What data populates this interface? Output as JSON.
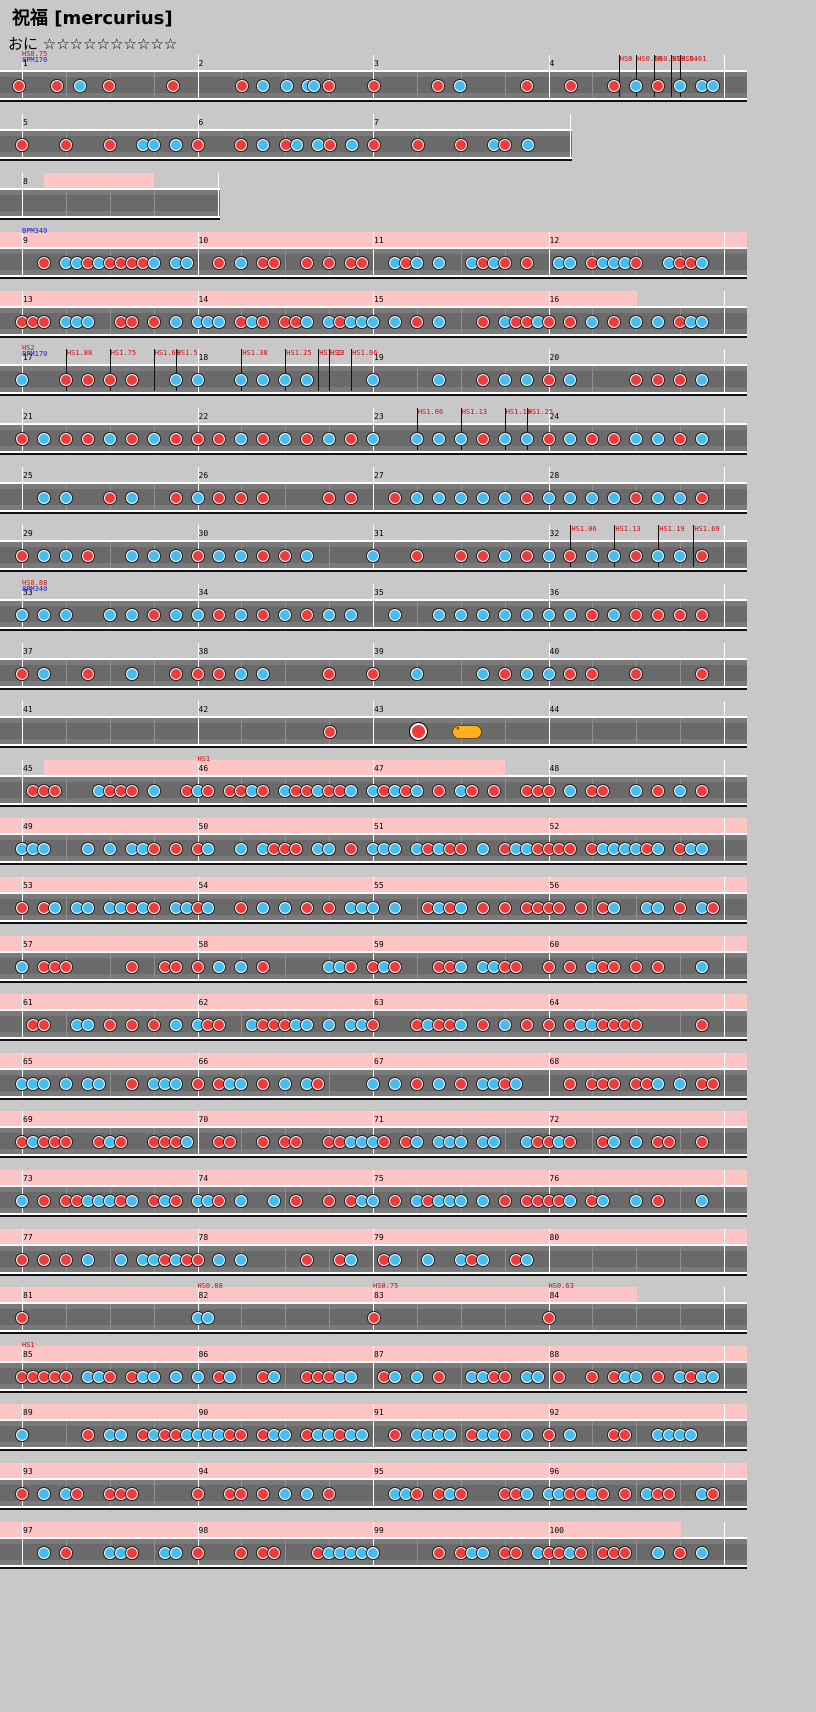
{
  "title": "祝福 [mercurius]",
  "difficulty_label": "おに ☆☆☆☆☆☆☆☆☆☆",
  "colors": {
    "don": "#ee3b3b",
    "ka": "#46bdf0",
    "gogo": "#ffc4c4",
    "lane": "#7a7a7a",
    "balloon": "#ffb020",
    "scroll_text": "#d01010",
    "bpm_text": "#1818d0"
  },
  "rows": [
    {
      "measures": [
        "1",
        "2",
        "3",
        "4"
      ],
      "commands": [
        {
          "text": "HS0.75",
          "kind": "hs",
          "measure": 0,
          "beat": 0,
          "line": 0
        },
        {
          "text": "BPM170",
          "kind": "bpm",
          "measure": 0,
          "beat": 0,
          "line": 1
        },
        {
          "text": "HS0",
          "kind": "hs",
          "measure": 3,
          "beat": 1.6,
          "line": 0,
          "stem": true
        },
        {
          "text": "HS0.50",
          "kind": "hs",
          "measure": 3,
          "beat": 2.0,
          "line": 0,
          "stem": true
        },
        {
          "text": "HS0.51",
          "kind": "hs",
          "measure": 3,
          "beat": 2.4,
          "line": 0,
          "stem": true
        },
        {
          "text": "HS0.54",
          "kind": "hs",
          "measure": 3,
          "beat": 2.8,
          "line": 0,
          "stem": true
        },
        {
          "text": "HS0.61",
          "kind": "hs",
          "measure": 3,
          "beat": 3.0,
          "line": 0,
          "stem": true
        }
      ]
    },
    {
      "measures": [
        "5",
        "6",
        "7"
      ]
    },
    {
      "measures": [
        "8"
      ]
    },
    {
      "measures": [
        "9",
        "10",
        "11",
        "12"
      ],
      "commands": [
        {
          "text": "BPM340",
          "kind": "bpm",
          "measure": 0,
          "beat": 0,
          "line": 0
        }
      ]
    },
    {
      "measures": [
        "13",
        "14",
        "15",
        "16"
      ]
    },
    {
      "measures": [
        "17",
        "18",
        "19",
        "20"
      ],
      "commands": [
        {
          "text": "HS2",
          "kind": "hs",
          "measure": 0,
          "beat": 0,
          "line": 0
        },
        {
          "text": "BPM170",
          "kind": "bpm",
          "measure": 0,
          "beat": 0,
          "line": 1
        },
        {
          "text": "HS1.88",
          "kind": "hs",
          "measure": 0,
          "beat": 1,
          "line": 0,
          "stem": true
        },
        {
          "text": "HS1.75",
          "kind": "hs",
          "measure": 0,
          "beat": 2,
          "line": 0,
          "stem": true
        },
        {
          "text": "HS1.63",
          "kind": "hs",
          "measure": 0,
          "beat": 3,
          "line": 0,
          "stem": true
        },
        {
          "text": "HS1.5",
          "kind": "hs",
          "measure": 0,
          "beat": 3.5,
          "line": 0,
          "stem": true
        },
        {
          "text": "HS1.38",
          "kind": "hs",
          "measure": 1,
          "beat": 1,
          "line": 0,
          "stem": true
        },
        {
          "text": "HS1.25",
          "kind": "hs",
          "measure": 1,
          "beat": 2,
          "line": 0,
          "stem": true
        },
        {
          "text": "HS1.13",
          "kind": "hs",
          "measure": 1,
          "beat": 2.75,
          "line": 0,
          "stem": true
        },
        {
          "text": "HS1",
          "kind": "hs",
          "measure": 1,
          "beat": 3,
          "line": 0,
          "stem": true
        },
        {
          "text": "HS1.06",
          "kind": "hs",
          "measure": 1,
          "beat": 3.5,
          "line": 0,
          "stem": true
        }
      ]
    },
    {
      "measures": [
        "21",
        "22",
        "23",
        "24"
      ],
      "commands": [
        {
          "text": "HS1.06",
          "kind": "hs",
          "measure": 2,
          "beat": 1,
          "line": 0,
          "stem": true
        },
        {
          "text": "HS1.13",
          "kind": "hs",
          "measure": 2,
          "beat": 2,
          "line": 0,
          "stem": true
        },
        {
          "text": "HS1.19",
          "kind": "hs",
          "measure": 2,
          "beat": 3,
          "line": 0,
          "stem": true
        },
        {
          "text": "HS1.25",
          "kind": "hs",
          "measure": 2,
          "beat": 3.5,
          "line": 0,
          "stem": true
        }
      ]
    },
    {
      "measures": [
        "25",
        "26",
        "27",
        "28"
      ]
    },
    {
      "measures": [
        "29",
        "30",
        "31",
        "32"
      ],
      "commands": [
        {
          "text": "HS1.06",
          "kind": "hs",
          "measure": 3,
          "beat": 0.5,
          "line": 0,
          "stem": true
        },
        {
          "text": "HS1.13",
          "kind": "hs",
          "measure": 3,
          "beat": 1.5,
          "line": 0,
          "stem": true
        },
        {
          "text": "HS1.19",
          "kind": "hs",
          "measure": 3,
          "beat": 2.5,
          "line": 0,
          "stem": true
        },
        {
          "text": "HS1.69",
          "kind": "hs",
          "measure": 3,
          "beat": 3.3,
          "line": 0,
          "stem": true
        }
      ]
    },
    {
      "measures": [
        "33",
        "34",
        "35",
        "36"
      ],
      "commands": [
        {
          "text": "HS0.88",
          "kind": "hs",
          "measure": 0,
          "beat": 0,
          "line": 0
        },
        {
          "text": "BPM340",
          "kind": "bpm",
          "measure": 0,
          "beat": 0,
          "line": 1
        }
      ]
    },
    {
      "measures": [
        "37",
        "38",
        "39",
        "40"
      ]
    },
    {
      "measures": [
        "41",
        "42",
        "43",
        "44"
      ]
    },
    {
      "measures": [
        "45",
        "46",
        "47",
        "48"
      ],
      "commands": [
        {
          "text": "HS1",
          "kind": "hs",
          "measure": 1,
          "beat": 0,
          "line": 0
        }
      ]
    },
    {
      "measures": [
        "49",
        "50",
        "51",
        "52"
      ]
    },
    {
      "measures": [
        "53",
        "54",
        "55",
        "56"
      ]
    },
    {
      "measures": [
        "57",
        "58",
        "59",
        "60"
      ]
    },
    {
      "measures": [
        "61",
        "62",
        "63",
        "64"
      ]
    },
    {
      "measures": [
        "65",
        "66",
        "67",
        "68"
      ]
    },
    {
      "measures": [
        "69",
        "70",
        "71",
        "72"
      ]
    },
    {
      "measures": [
        "73",
        "74",
        "75",
        "76"
      ]
    },
    {
      "measures": [
        "77",
        "78",
        "79",
        "80"
      ]
    },
    {
      "measures": [
        "81",
        "82",
        "83",
        "84"
      ],
      "commands": [
        {
          "text": "HS0.88",
          "kind": "hs",
          "measure": 1,
          "beat": 0,
          "line": 0
        },
        {
          "text": "HS0.75",
          "kind": "hs",
          "measure": 2,
          "beat": 0,
          "line": 0
        },
        {
          "text": "HS0.63",
          "kind": "hs",
          "measure": 3,
          "beat": 0,
          "line": 0
        }
      ]
    },
    {
      "measures": [
        "85",
        "86",
        "87",
        "88"
      ],
      "commands": [
        {
          "text": "HS1",
          "kind": "hs",
          "measure": 0,
          "beat": 0,
          "line": 0
        }
      ]
    },
    {
      "measures": [
        "89",
        "90",
        "91",
        "92"
      ]
    },
    {
      "measures": [
        "93",
        "94",
        "95",
        "96"
      ]
    },
    {
      "measures": [
        "97",
        "98",
        "99",
        "100"
      ]
    }
  ]
}
